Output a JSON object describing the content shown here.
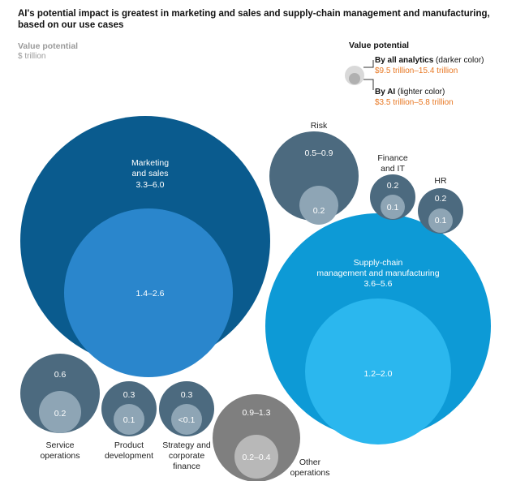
{
  "header": {
    "title": "AI's potential impact is greatest in marketing and sales and supply-chain management and manufacturing, based on our use cases",
    "measure_label": "Value potential",
    "measure_unit": "$ trillion"
  },
  "legend": {
    "title": "Value potential",
    "analytics": {
      "name": "By all analytics",
      "note": "(darker color)",
      "range": "$9.5 trillion–15.4 trillion"
    },
    "ai": {
      "name": "By AI",
      "note": "(lighter color)",
      "range": "$3.5 trillion–5.8 trillion"
    }
  },
  "colors": {
    "dark_blue": "#0a5b8e",
    "mid_blue": "#2a86cc",
    "cyan": "#0d9ad6",
    "light_cyan": "#2bb7ee",
    "slate": "#4c6a7f",
    "slate_light": "#8ea5b5",
    "grey": "#7f7f7f",
    "grey_light": "#b8b8b8",
    "legend_outer": "#d9d9d9",
    "legend_inner": "#b0b0b0",
    "accent_orange": "#e87722"
  },
  "chart_data": {
    "type": "bubble",
    "title": "AI's potential impact is greatest in marketing and sales and supply-chain management and manufacturing, based on our use cases",
    "unit": "$ trillion",
    "series": [
      {
        "name": "By all analytics"
      },
      {
        "name": "By AI"
      }
    ],
    "categories": [
      {
        "name": "Marketing and sales",
        "all_analytics": "3.3–6.0",
        "ai": "1.4–2.6"
      },
      {
        "name": "Supply-chain management and manufacturing",
        "all_analytics": "3.6–5.6",
        "ai": "1.2–2.0"
      },
      {
        "name": "Risk",
        "all_analytics": "0.5–0.9",
        "ai": "0.2"
      },
      {
        "name": "Finance and IT",
        "all_analytics": "0.2",
        "ai": "0.1"
      },
      {
        "name": "HR",
        "all_analytics": "0.2",
        "ai": "0.1"
      },
      {
        "name": "Service operations",
        "all_analytics": "0.6",
        "ai": "0.2"
      },
      {
        "name": "Product development",
        "all_analytics": "0.3",
        "ai": "0.1"
      },
      {
        "name": "Strategy and corporate finance",
        "all_analytics": "0.3",
        "ai": "<0.1"
      },
      {
        "name": "Other operations",
        "all_analytics": "0.9–1.3",
        "ai": "0.2–0.4"
      }
    ]
  },
  "labels": {
    "marketing_name_1": "Marketing",
    "marketing_name_2": "and sales",
    "supply_name_1": "Supply-chain",
    "supply_name_2": "management and manufacturing",
    "risk_name": "Risk",
    "finance_name_1": "Finance",
    "finance_name_2": "and IT",
    "hr_name": "HR",
    "service_name_1": "Service",
    "service_name_2": "operations",
    "product_name_1": "Product",
    "product_name_2": "development",
    "strategy_name_1": "Strategy and",
    "strategy_name_2": "corporate",
    "strategy_name_3": "finance",
    "other_name_1": "Other",
    "other_name_2": "operations"
  }
}
